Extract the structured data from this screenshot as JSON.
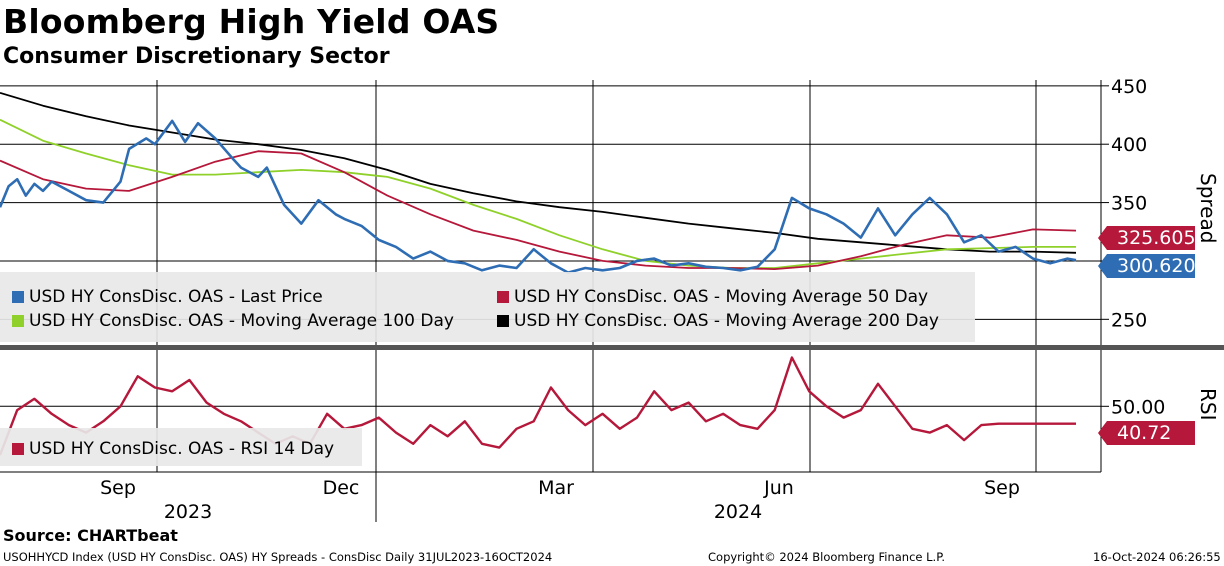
{
  "header": {
    "title": "Bloomberg High Yield OAS",
    "subtitle": "Consumer Discretionary Sector"
  },
  "colors": {
    "last_price": "#2e6db4",
    "ma50": "#b5183a",
    "ma100": "#8fd12a",
    "ma200": "#000000",
    "rsi": "#b5183a"
  },
  "chart_data": [
    {
      "type": "line",
      "panel": "spread",
      "ylabel": "Spread",
      "ylim": [
        228,
        455
      ],
      "yticks": [
        250,
        300,
        350,
        400,
        450
      ],
      "ytick_labels": [
        "250",
        "",
        "350",
        "400",
        "450"
      ],
      "x_unit": "month index from 2023-07-31 (Aug 2023 = 0.0)",
      "series": [
        {
          "name": "USD HY ConsDisc. OAS - Last Price",
          "x": [
            0.0,
            0.1,
            0.2,
            0.3,
            0.4,
            0.5,
            0.6,
            0.8,
            1.0,
            1.2,
            1.4,
            1.5,
            1.7,
            1.8,
            2.0,
            2.15,
            2.3,
            2.5,
            2.7,
            2.8,
            3.0,
            3.1,
            3.3,
            3.5,
            3.7,
            3.9,
            4.0,
            4.2,
            4.4,
            4.6,
            4.8,
            5.0,
            5.2,
            5.4,
            5.6,
            5.8,
            6.0,
            6.2,
            6.4,
            6.6,
            6.8,
            7.0,
            7.2,
            7.4,
            7.6,
            7.8,
            8.0,
            8.2,
            8.4,
            8.6,
            8.8,
            9.0,
            9.2,
            9.4,
            9.6,
            9.8,
            10.0,
            10.2,
            10.4,
            10.6,
            10.8,
            11.0,
            11.2,
            11.4,
            11.6,
            11.8,
            12.0,
            12.2,
            12.4,
            12.5
          ],
          "values": [
            346,
            364,
            370,
            356,
            366,
            360,
            368,
            360,
            352,
            350,
            368,
            396,
            405,
            400,
            420,
            402,
            418,
            405,
            388,
            380,
            372,
            380,
            348,
            332,
            352,
            340,
            336,
            330,
            318,
            312,
            302,
            308,
            300,
            298,
            292,
            296,
            294,
            310,
            298,
            290,
            294,
            292,
            294,
            300,
            302,
            296,
            298,
            295,
            294,
            292,
            295,
            310,
            354,
            345,
            340,
            332,
            320,
            345,
            322,
            340,
            354,
            340,
            316,
            322,
            308,
            312,
            302,
            298,
            302,
            300.6
          ]
        },
        {
          "name": "USD HY ConsDisc. OAS - Moving Average 50 Day",
          "x": [
            0.0,
            0.5,
            1.0,
            1.5,
            2.0,
            2.5,
            3.0,
            3.5,
            4.0,
            4.5,
            5.0,
            5.5,
            6.0,
            6.5,
            7.0,
            7.5,
            8.0,
            8.5,
            9.0,
            9.5,
            10.0,
            10.5,
            11.0,
            11.5,
            12.0,
            12.5
          ],
          "values": [
            386,
            370,
            362,
            360,
            372,
            385,
            394,
            392,
            376,
            356,
            340,
            326,
            318,
            308,
            300,
            296,
            294,
            294,
            293,
            296,
            304,
            314,
            322,
            320,
            327,
            326
          ]
        },
        {
          "name": "USD HY ConsDisc. OAS - Moving Average 100 Day",
          "x": [
            0.0,
            0.5,
            1.0,
            1.5,
            2.0,
            2.5,
            3.0,
            3.5,
            4.0,
            4.5,
            5.0,
            5.5,
            6.0,
            6.5,
            7.0,
            7.5,
            8.0,
            8.5,
            9.0,
            9.5,
            10.0,
            10.5,
            11.0,
            11.5,
            12.0,
            12.5
          ],
          "values": [
            421,
            403,
            392,
            382,
            374,
            374,
            376,
            378,
            376,
            372,
            362,
            348,
            336,
            322,
            310,
            300,
            296,
            294,
            294,
            298,
            302,
            306,
            310,
            311,
            312,
            312
          ]
        },
        {
          "name": "USD HY ConsDisc. OAS - Moving Average 200 Day",
          "x": [
            0.0,
            0.5,
            1.0,
            1.5,
            2.0,
            2.5,
            3.0,
            3.5,
            4.0,
            4.5,
            5.0,
            5.5,
            6.0,
            6.5,
            7.0,
            7.5,
            8.0,
            8.5,
            9.0,
            9.5,
            10.0,
            10.5,
            11.0,
            11.5,
            12.0,
            12.5
          ],
          "values": [
            444,
            433,
            424,
            416,
            410,
            404,
            400,
            395,
            388,
            378,
            366,
            358,
            351,
            346,
            342,
            337,
            332,
            328,
            324,
            319,
            316,
            313,
            310,
            308,
            308,
            307
          ]
        }
      ],
      "legend": "bottom-left",
      "grid": true
    },
    {
      "type": "line",
      "panel": "rsi",
      "ylabel": "RSI",
      "ylim": [
        15,
        80
      ],
      "yticks": [
        50
      ],
      "ytick_labels": [
        "50.00"
      ],
      "series": [
        {
          "name": "USD HY ConsDisc. OAS - RSI 14 Day",
          "x": [
            0.0,
            0.2,
            0.4,
            0.6,
            0.8,
            1.0,
            1.2,
            1.4,
            1.6,
            1.8,
            2.0,
            2.2,
            2.4,
            2.6,
            2.8,
            3.0,
            3.2,
            3.4,
            3.6,
            3.8,
            4.0,
            4.2,
            4.4,
            4.6,
            4.8,
            5.0,
            5.2,
            5.4,
            5.6,
            5.8,
            6.0,
            6.2,
            6.4,
            6.6,
            6.8,
            7.0,
            7.2,
            7.4,
            7.6,
            7.8,
            8.0,
            8.2,
            8.4,
            8.6,
            8.8,
            9.0,
            9.2,
            9.4,
            9.6,
            9.8,
            10.0,
            10.2,
            10.4,
            10.6,
            10.8,
            11.0,
            11.2,
            11.4,
            11.6,
            11.8,
            12.0,
            12.2,
            12.4,
            12.5
          ],
          "values": [
            24,
            48,
            54,
            46,
            40,
            36,
            42,
            50,
            66,
            60,
            58,
            64,
            52,
            46,
            42,
            36,
            30,
            34,
            30,
            46,
            38,
            40,
            44,
            36,
            30,
            40,
            34,
            42,
            30,
            28,
            38,
            42,
            60,
            48,
            40,
            46,
            38,
            44,
            58,
            48,
            52,
            42,
            46,
            40,
            38,
            48,
            76,
            58,
            50,
            44,
            48,
            62,
            50,
            38,
            36,
            40,
            32,
            40,
            40.72,
            40.72,
            40.72,
            40.72,
            40.72,
            40.72
          ]
        }
      ],
      "legend": "bottom-left"
    }
  ],
  "xaxis": {
    "month_labels": [
      "Sep",
      "Dec",
      "Mar",
      "Jun",
      "Sep"
    ],
    "year_labels": [
      "2023",
      "2024"
    ]
  },
  "value_tags": {
    "ma50": "325.605",
    "last_price": "300.620",
    "rsi": "40.72"
  },
  "footer": {
    "source": "Source: CHARTbeat",
    "ticker_info": "USOHHYCD Index (USD HY ConsDisc. OAS) HY Spreads - ConsDisc  Daily 31JUL2023-16OCT2024",
    "copyright": "Copyright© 2024 Bloomberg Finance L.P.",
    "timestamp": "16-Oct-2024 06:26:55"
  }
}
